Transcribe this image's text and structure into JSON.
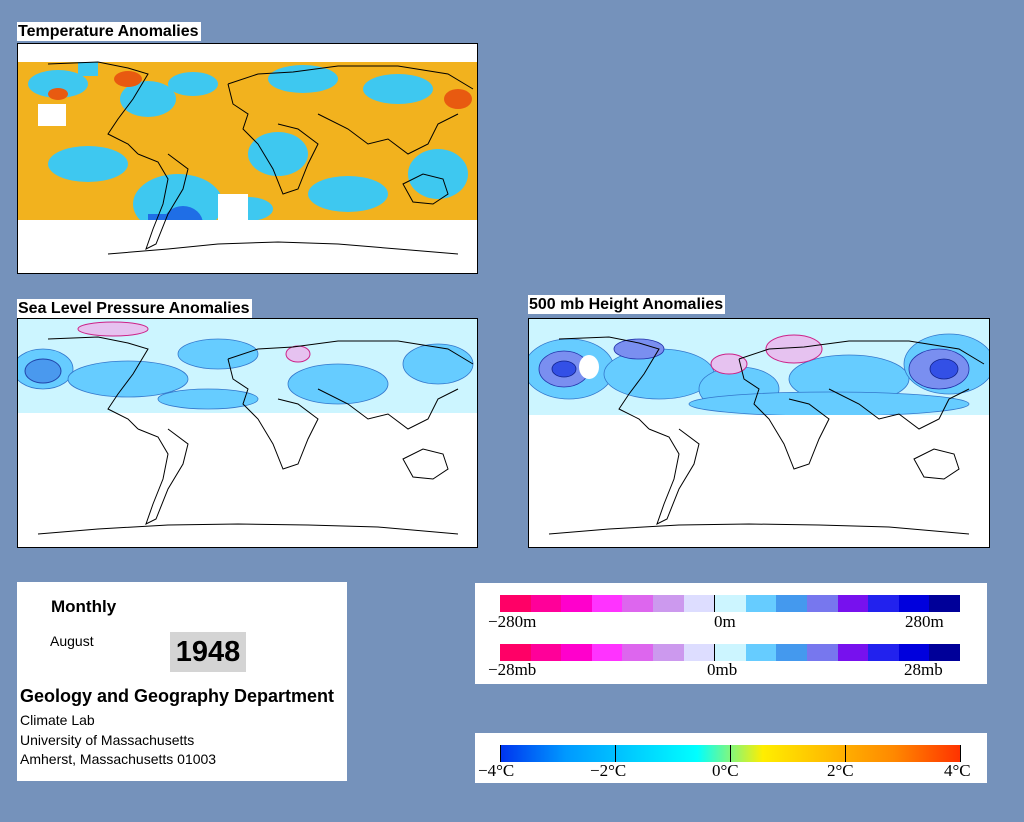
{
  "panels": {
    "temperature": {
      "title": "Temperature Anomalies"
    },
    "slp": {
      "title": "Sea Level Pressure Anomalies"
    },
    "height500": {
      "title": "500 mb Height Anomalies"
    }
  },
  "info": {
    "period": "Monthly",
    "month": "August",
    "year": "1948",
    "department": "Geology and Geography Department",
    "lines": [
      "Climate Lab",
      "University of Massachusetts",
      "Amherst, Massachusetts 01003"
    ]
  },
  "legends": {
    "height": {
      "labels": [
        "−280m",
        "0m",
        "280m"
      ]
    },
    "pressure": {
      "labels": [
        "−28mb",
        "0mb",
        "28mb"
      ]
    },
    "temperature": {
      "labels": [
        "−4°C",
        "−2°C",
        "0°C",
        "2°C",
        "4°C"
      ]
    }
  },
  "colors": {
    "background": "#7592bb",
    "anomaly_scale": [
      "#ff0066",
      "#ff0099",
      "#ff00cc",
      "#ff33ff",
      "#dd66ee",
      "#cc99ee",
      "#ddddff",
      "#ccf5ff",
      "#66ccff",
      "#4499ee",
      "#7777ee",
      "#7711ee",
      "#2222ee",
      "#0000dd",
      "#000099"
    ],
    "temperature_scale": [
      "#0033ee",
      "#0099ff",
      "#00ccff",
      "#00ffff",
      "#ffee00",
      "#ffbb00",
      "#ff8800",
      "#ff3300"
    ]
  }
}
